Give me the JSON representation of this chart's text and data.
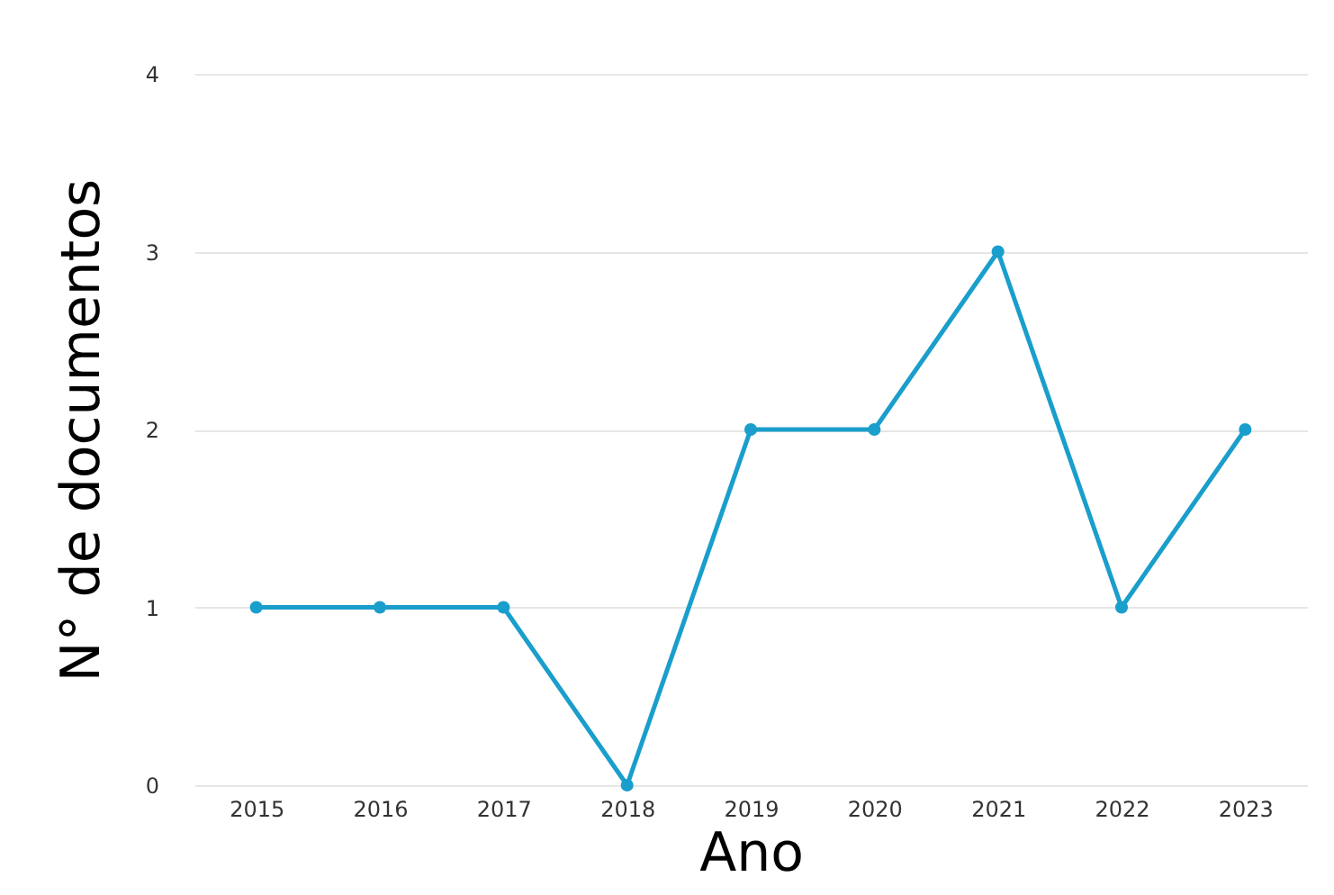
{
  "chart_data": {
    "type": "line",
    "xlabel": "Ano",
    "ylabel": "N° de documentos",
    "categories": [
      "2015",
      "2016",
      "2017",
      "2018",
      "2019",
      "2020",
      "2021",
      "2022",
      "2023"
    ],
    "series": [
      {
        "color": "#1a9ecb",
        "values": [
          1,
          1,
          1,
          0,
          2,
          2,
          3,
          1,
          2
        ]
      }
    ],
    "ylim": [
      0,
      4
    ],
    "yticks": [
      0,
      1,
      2,
      3,
      4
    ],
    "grid": "y",
    "marker": "circle",
    "line_style": "solid",
    "legend": false
  }
}
